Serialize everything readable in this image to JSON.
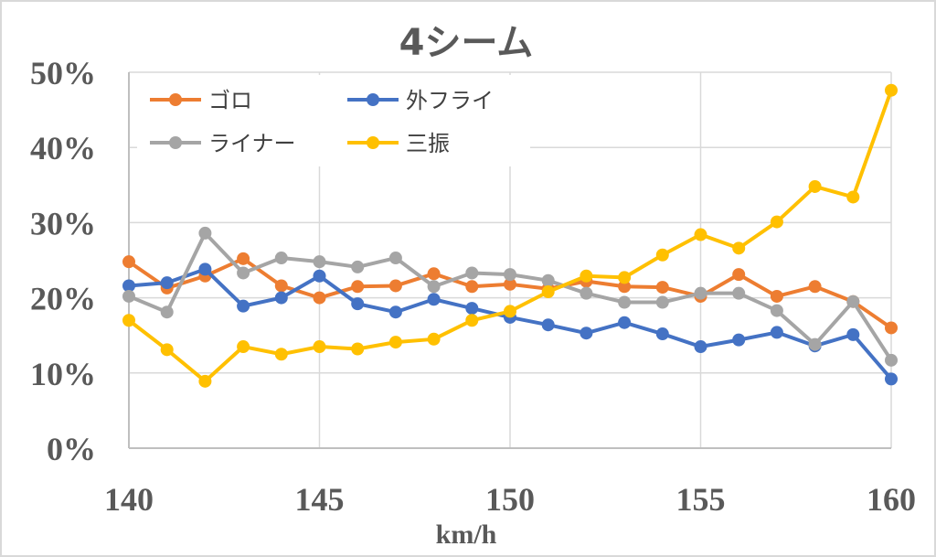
{
  "chart_data": {
    "type": "line",
    "title": "4シーム",
    "xlabel": "km/h",
    "ylabel": "",
    "x": [
      140,
      141,
      142,
      143,
      144,
      145,
      146,
      147,
      148,
      149,
      150,
      151,
      152,
      153,
      154,
      155,
      156,
      157,
      158,
      159,
      160
    ],
    "xlim": [
      140,
      160
    ],
    "ylim": [
      0,
      0.5
    ],
    "x_ticks": [
      "140",
      "145",
      "150",
      "155",
      "160"
    ],
    "x_tick_values": [
      140,
      145,
      150,
      155,
      160
    ],
    "y_ticks": [
      "0%",
      "10%",
      "20%",
      "30%",
      "40%",
      "50%"
    ],
    "y_tick_values": [
      0,
      0.1,
      0.2,
      0.3,
      0.4,
      0.5
    ],
    "grid": true,
    "legend_position": "top-left",
    "series": [
      {
        "name": "ゴロ",
        "color": "#ED7D31",
        "values": [
          0.248,
          0.213,
          0.229,
          0.252,
          0.216,
          0.2,
          0.215,
          0.216,
          0.232,
          0.215,
          0.218,
          0.212,
          0.222,
          0.215,
          0.214,
          0.202,
          0.231,
          0.202,
          0.215,
          0.195,
          0.16
        ]
      },
      {
        "name": "外フライ",
        "color": "#4472C4",
        "values": [
          0.216,
          0.22,
          0.238,
          0.189,
          0.2,
          0.229,
          0.192,
          0.181,
          0.198,
          0.186,
          0.174,
          0.164,
          0.153,
          0.167,
          0.152,
          0.135,
          0.144,
          0.154,
          0.136,
          0.151,
          0.092
        ]
      },
      {
        "name": "ライナー",
        "color": "#A5A5A5",
        "values": [
          0.202,
          0.181,
          0.286,
          0.233,
          0.253,
          0.248,
          0.241,
          0.253,
          0.215,
          0.233,
          0.231,
          0.223,
          0.206,
          0.194,
          0.194,
          0.206,
          0.206,
          0.183,
          0.138,
          0.195,
          0.117
        ]
      },
      {
        "name": "三振",
        "color": "#FFC000",
        "values": [
          0.17,
          0.131,
          0.089,
          0.135,
          0.125,
          0.135,
          0.132,
          0.141,
          0.145,
          0.17,
          0.182,
          0.208,
          0.229,
          0.227,
          0.257,
          0.284,
          0.266,
          0.301,
          0.348,
          0.334,
          0.476
        ]
      }
    ]
  }
}
